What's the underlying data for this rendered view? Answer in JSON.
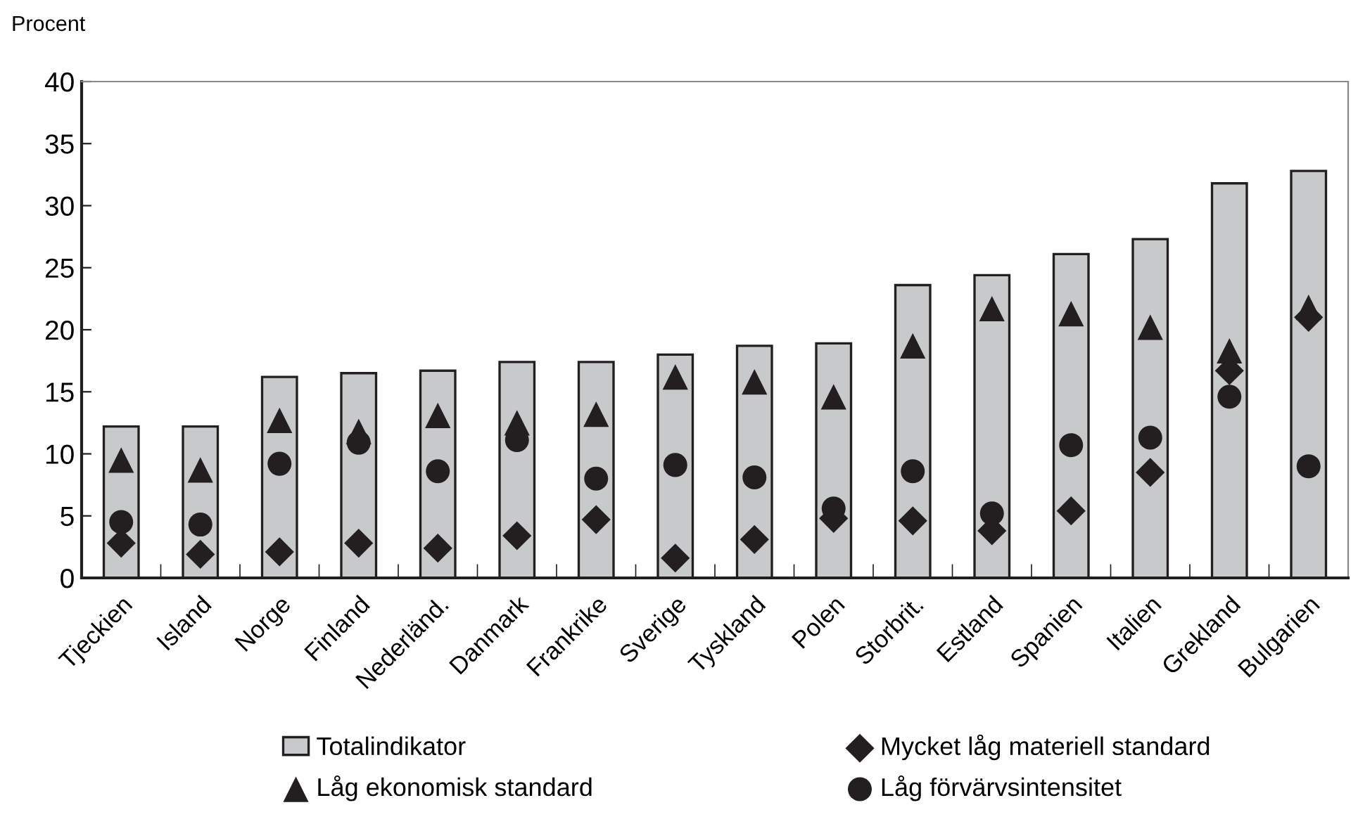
{
  "chart_data": {
    "type": "bar",
    "ylabel": "Procent",
    "categories": [
      "Tjeckien",
      "Island",
      "Norge",
      "Finland",
      "Nederländ.",
      "Danmark",
      "Frankrike",
      "Sverige",
      "Tyskland",
      "Polen",
      "Storbrit.",
      "Estland",
      "Spanien",
      "Italien",
      "Grekland",
      "Bulgarien"
    ],
    "series": [
      {
        "name": "Totalindikator",
        "color": "#c8c9cb",
        "values": [
          12.2,
          12.2,
          16.2,
          16.5,
          16.7,
          17.4,
          17.4,
          18.0,
          18.7,
          18.9,
          23.6,
          24.4,
          26.1,
          27.3,
          31.8,
          32.8
        ]
      },
      {
        "name": "Mycket låg materiell standard",
        "type": "scatter",
        "marker": "diamond",
        "color": "#231f20",
        "values": [
          2.8,
          1.9,
          2.1,
          2.8,
          2.4,
          3.4,
          4.7,
          1.6,
          3.1,
          4.8,
          4.6,
          3.8,
          5.4,
          8.5,
          16.7,
          21.0
        ]
      },
      {
        "name": "Låg ekonomisk standard",
        "type": "scatter",
        "marker": "triangle",
        "color": "#231f20",
        "values": [
          9.5,
          8.7,
          12.7,
          11.8,
          13.1,
          12.5,
          13.2,
          16.2,
          15.8,
          14.6,
          18.7,
          21.7,
          21.3,
          20.2,
          18.3,
          21.8
        ]
      },
      {
        "name": "Låg förvärvsintensitet",
        "type": "scatter",
        "marker": "circle",
        "color": "#231f20",
        "values": [
          4.5,
          4.3,
          9.2,
          10.9,
          8.6,
          11.1,
          8.0,
          9.1,
          8.1,
          5.6,
          8.6,
          5.2,
          10.7,
          11.3,
          14.6,
          9.0
        ]
      }
    ],
    "ylim": [
      0,
      40
    ],
    "yticks": [
      0,
      5,
      10,
      15,
      20,
      25,
      30,
      35,
      40
    ],
    "grid": false,
    "legend": "bottom"
  }
}
